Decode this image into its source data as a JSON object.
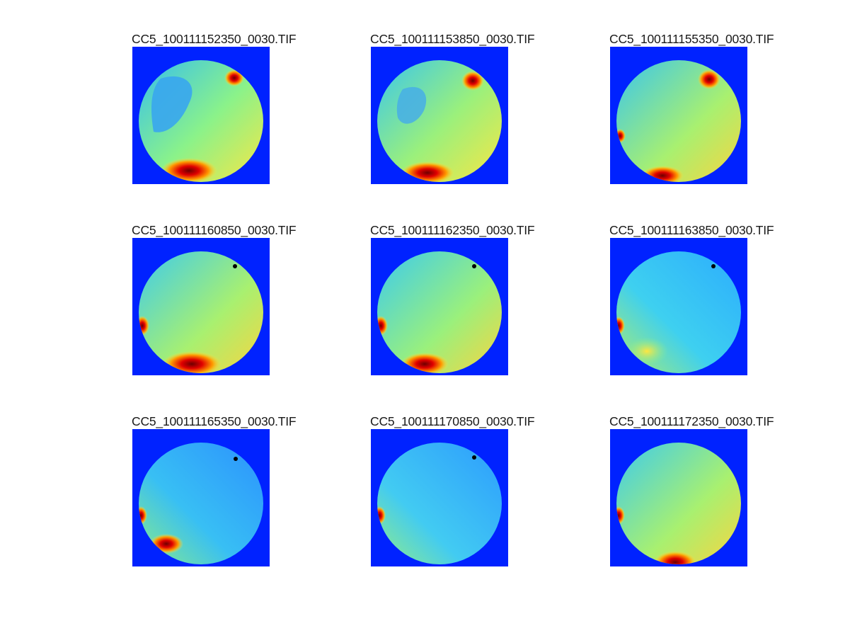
{
  "figure": {
    "background": "#ffffff",
    "colormap": "jet",
    "panels": [
      {
        "title": "CC5_100111152350_0030.TIF",
        "variant": "p1"
      },
      {
        "title": "CC5_100111153850_0030.TIF",
        "variant": "p2"
      },
      {
        "title": "CC5_100111155350_0030.TIF",
        "variant": "p3"
      },
      {
        "title": "CC5_100111160850_0030.TIF",
        "variant": "p4"
      },
      {
        "title": "CC5_100111162350_0030.TIF",
        "variant": "p5"
      },
      {
        "title": "CC5_100111163850_0030.TIF",
        "variant": "p6"
      },
      {
        "title": "CC5_100111165350_0030.TIF",
        "variant": "p7"
      },
      {
        "title": "CC5_100111170850_0030.TIF",
        "variant": "p8"
      },
      {
        "title": "CC5_100111172350_0030.TIF",
        "variant": "p9"
      }
    ]
  }
}
